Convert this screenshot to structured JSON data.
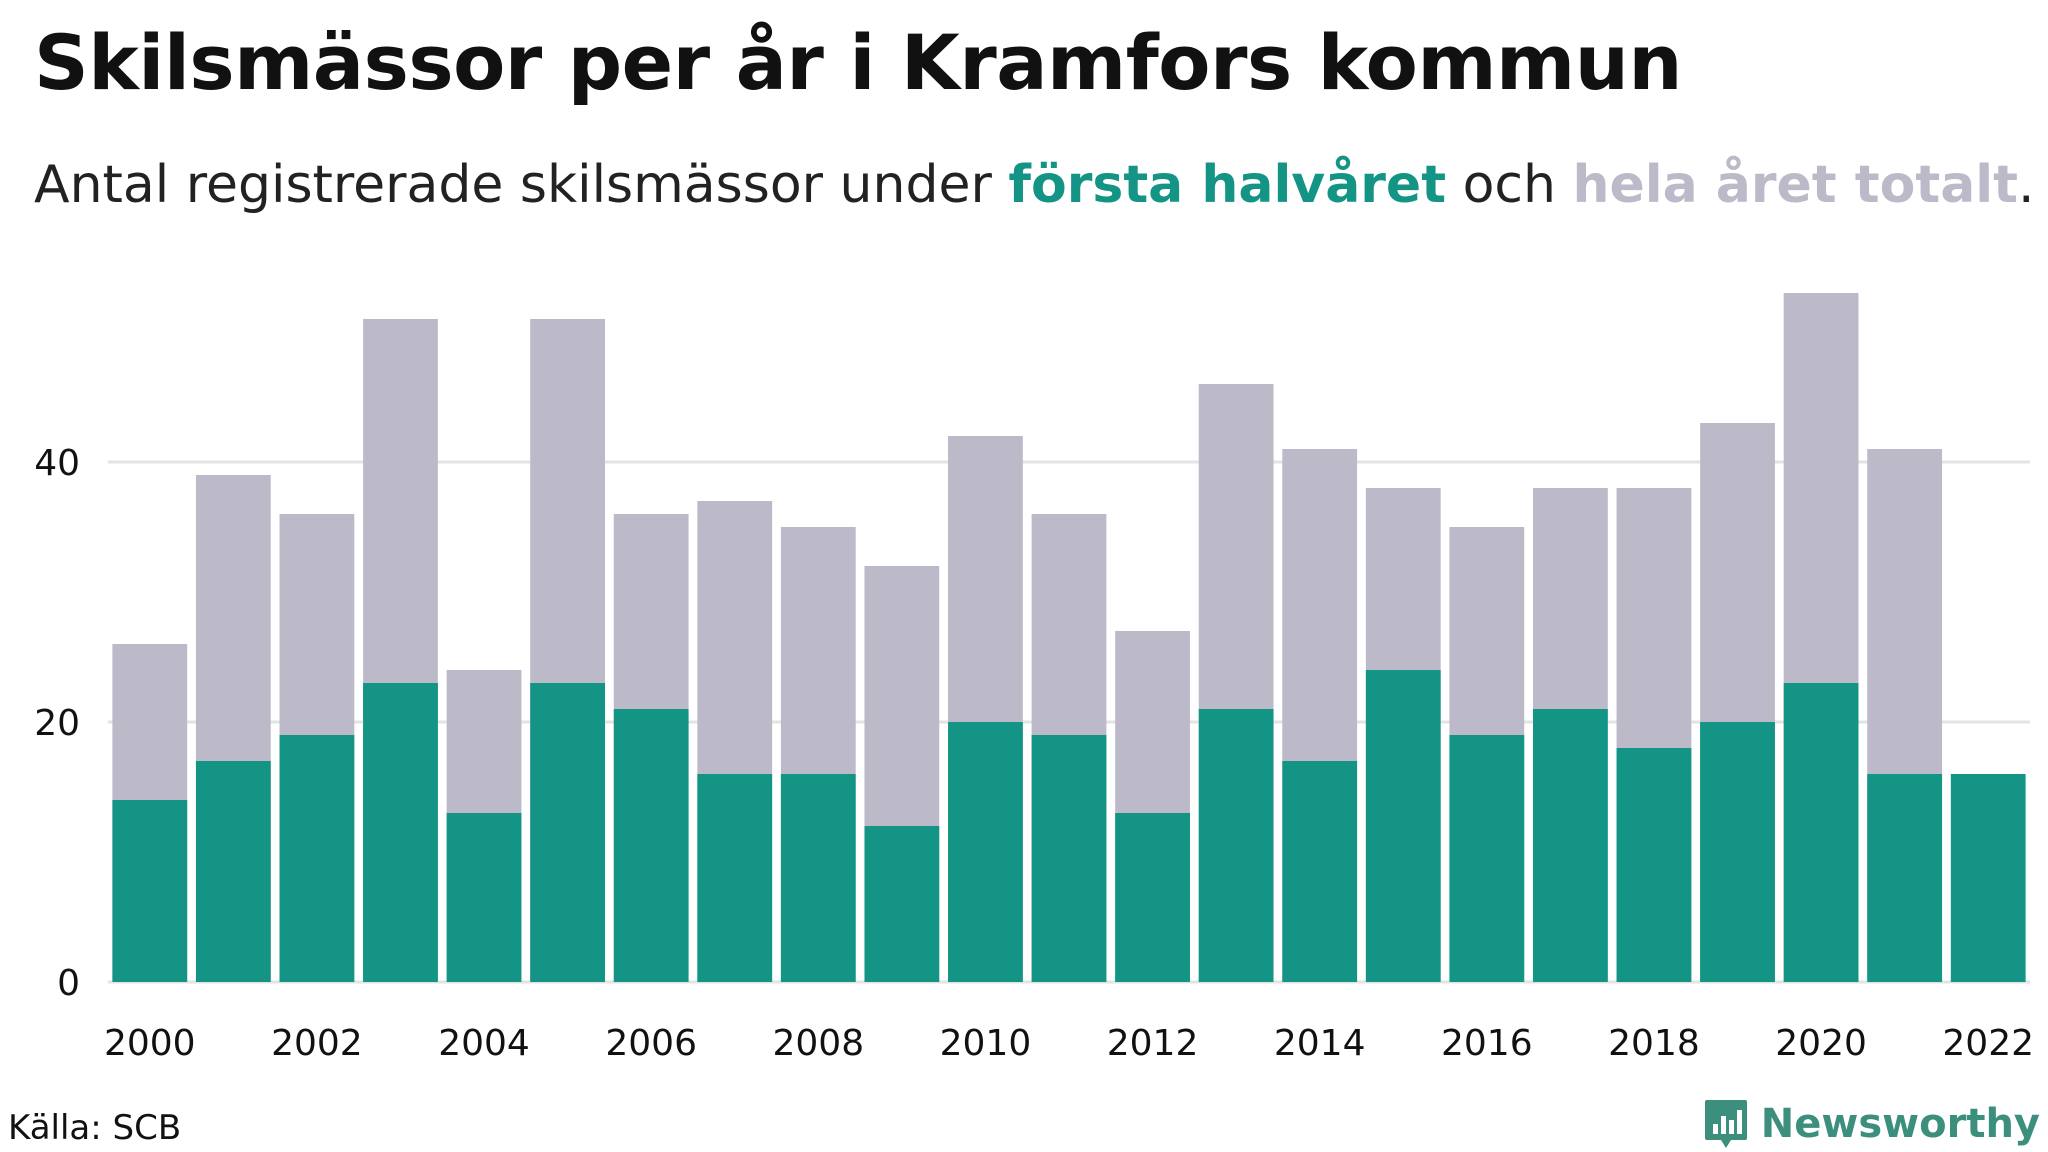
{
  "title": "Skilsmässor per år i Kramfors kommun",
  "subtitle": {
    "prefix": "Antal registrerade skilsmässor under ",
    "series1": "första halvåret",
    "middle": " och ",
    "series2": "hela året totalt",
    "suffix": "."
  },
  "source": "Källa: SCB",
  "brand": {
    "name": "Newsworthy",
    "icon": "newsworthy-logo-icon"
  },
  "colors": {
    "first_half": "#139485",
    "full_year": "#bcbac8",
    "grid": "#e3e3e3",
    "text": "#111111"
  },
  "chart_data": {
    "type": "bar",
    "stacking": "overlay",
    "x": [
      2000,
      2001,
      2002,
      2003,
      2004,
      2005,
      2006,
      2007,
      2008,
      2009,
      2010,
      2011,
      2012,
      2013,
      2014,
      2015,
      2016,
      2017,
      2018,
      2019,
      2020,
      2021,
      2022
    ],
    "x_tick_labels": [
      "2000",
      "2002",
      "2004",
      "2006",
      "2008",
      "2010",
      "2012",
      "2014",
      "2016",
      "2018",
      "2020",
      "2022"
    ],
    "y_ticks": [
      0,
      20,
      40
    ],
    "ylim": [
      0,
      56
    ],
    "grid": true,
    "series": [
      {
        "name": "hela året totalt",
        "color": "#bcbac8",
        "values": [
          26,
          39,
          36,
          51,
          24,
          51,
          36,
          37,
          35,
          32,
          42,
          36,
          27,
          46,
          41,
          38,
          35,
          38,
          38,
          43,
          53,
          41,
          null
        ]
      },
      {
        "name": "första halvåret",
        "color": "#139485",
        "values": [
          14,
          17,
          19,
          23,
          13,
          23,
          21,
          16,
          16,
          12,
          20,
          19,
          13,
          21,
          17,
          24,
          19,
          21,
          18,
          20,
          23,
          16,
          16
        ]
      }
    ],
    "title": "",
    "xlabel": "",
    "ylabel": ""
  }
}
